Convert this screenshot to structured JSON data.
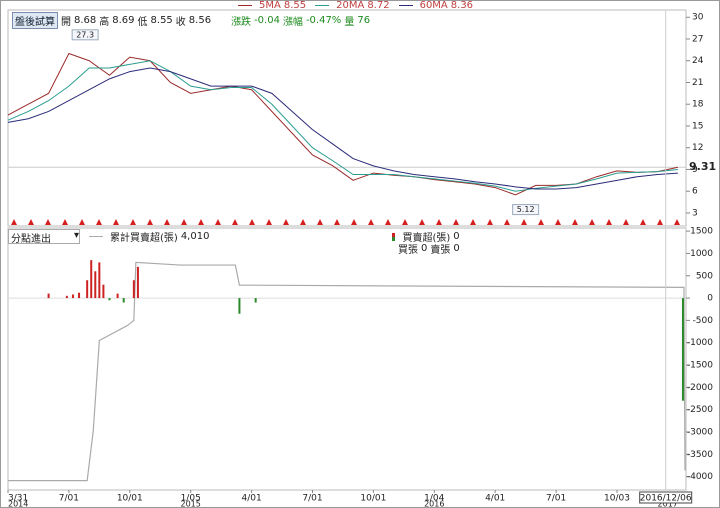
{
  "chart_data": [
    {
      "type": "line",
      "info": {
        "button": "盤後試算",
        "ohlc": [
          {
            "label": "開",
            "value": 8.68
          },
          {
            "label": "高",
            "value": 8.69
          },
          {
            "label": "低",
            "value": 8.55
          },
          {
            "label": "收",
            "value": 8.56
          }
        ],
        "change": [
          {
            "label": "漲跌",
            "value": -0.04
          },
          {
            "label": "漲幅",
            "value": -0.47,
            "value_label": "-0.47%"
          },
          {
            "label": "量",
            "value": 76
          }
        ]
      },
      "x": [
        3,
        4,
        5,
        6,
        7,
        8,
        9,
        10,
        11,
        12,
        13,
        14,
        15,
        16,
        17,
        18,
        19,
        20,
        21,
        22,
        23,
        24,
        25,
        26,
        27,
        28,
        29,
        30,
        31,
        32,
        33,
        34,
        35,
        36
      ],
      "series": [
        {
          "name": "5MA",
          "last": 8.55,
          "color": "#9b2a2a",
          "values": [
            16.5,
            18,
            19.5,
            25,
            24,
            22,
            24.5,
            24,
            21,
            19.5,
            20,
            20.5,
            20,
            17,
            14,
            11,
            9.5,
            7.5,
            8.5,
            8.2,
            8,
            7.6,
            7.3,
            7,
            6.5,
            5.5,
            6.8,
            6.8,
            7,
            8,
            8.8,
            8.6,
            8.7,
            9.3
          ]
        },
        {
          "name": "20MA",
          "last": 8.72,
          "color": "#2a9d8f",
          "values": [
            15.8,
            17,
            18.5,
            20.5,
            23,
            23,
            23.5,
            24,
            22.5,
            20.5,
            20,
            20.3,
            20.3,
            18,
            15,
            12,
            10.2,
            8.3,
            8.3,
            8.3,
            8,
            7.7,
            7.4,
            7.1,
            6.7,
            6,
            6.4,
            6.7,
            7,
            7.7,
            8.5,
            8.6,
            8.7,
            9
          ]
        },
        {
          "name": "60MA",
          "last": 8.36,
          "color": "#2b2b7a",
          "values": [
            15.5,
            16,
            17,
            18.5,
            20,
            21.5,
            22.5,
            23,
            22.5,
            21.5,
            20.5,
            20.5,
            20.5,
            19.5,
            17,
            14.5,
            12.5,
            10.5,
            9.5,
            8.8,
            8.3,
            8,
            7.7,
            7.3,
            7,
            6.6,
            6.3,
            6.3,
            6.5,
            7,
            7.5,
            8,
            8.3,
            8.5
          ]
        }
      ],
      "last_price": 9.31,
      "annotations": [
        {
          "x": 6.8,
          "value": 27.3
        },
        {
          "x": 28.5,
          "value": 5.12
        }
      ],
      "xlim": [
        3,
        36.4
      ],
      "ylim": [
        1.2,
        31
      ],
      "yticks": [
        3,
        6,
        9,
        12,
        15,
        18,
        21,
        24,
        27,
        30
      ]
    },
    {
      "type": "bar",
      "selector": "分點進出",
      "counts": [
        {
          "label": "買張",
          "value": 0
        },
        {
          "label": "賣張",
          "value": 0
        }
      ],
      "series": [
        {
          "name": "累計買賣超(張)",
          "type": "line",
          "color": "#aaaaaa",
          "legend_value": {
            "value": 4010,
            "label": "4,010"
          },
          "x": [
            3,
            6.9,
            7.2,
            7.5,
            8.9,
            9.2,
            9.3,
            11.5,
            14.2,
            14.4,
            36.3,
            36.35
          ],
          "values": [
            -4090,
            -4090,
            -2970,
            -950,
            -610,
            -500,
            800,
            740,
            740,
            290,
            240,
            -3860
          ]
        },
        {
          "name": "買賣超(張)",
          "type": "bar",
          "pos_color": "#cc2222",
          "neg_color": "#2a8a2a",
          "legend_value": {
            "value": 0
          },
          "x": [
            5,
            5.9,
            6.2,
            6.5,
            6.9,
            7.1,
            7.3,
            7.5,
            7.7,
            8,
            8.4,
            8.7,
            9.2,
            9.4,
            14.4,
            15.2,
            36.25
          ],
          "values": [
            100,
            50,
            80,
            120,
            400,
            850,
            600,
            800,
            300,
            -50,
            100,
            -100,
            400,
            700,
            -350,
            -100,
            -2300
          ]
        }
      ],
      "xlim": [
        3,
        36.4
      ],
      "ylim": [
        -4300,
        1570
      ],
      "yticks": [
        1500,
        1000,
        500,
        0,
        -500,
        -1000,
        -1500,
        -2000,
        -2500,
        -3000,
        -3500,
        -4000
      ],
      "xticks": [
        {
          "value": 3,
          "label": "3/31"
        },
        {
          "value": 6,
          "label": "7/01"
        },
        {
          "value": 9,
          "label": "10/01"
        },
        {
          "value": 12,
          "label": "1/05"
        },
        {
          "value": 15,
          "label": "4/01"
        },
        {
          "value": 18,
          "label": "7/01"
        },
        {
          "value": 21,
          "label": "10/01"
        },
        {
          "value": 24,
          "label": "1/04"
        },
        {
          "value": 27,
          "label": "4/01"
        },
        {
          "value": 30,
          "label": "7/01"
        },
        {
          "value": 33,
          "label": "10/03"
        }
      ],
      "year_ticks": [
        {
          "value": 3,
          "label": "2014"
        },
        {
          "value": 12,
          "label": "2015"
        },
        {
          "value": 24,
          "label": "2016"
        },
        {
          "value": 36,
          "label": "2017"
        }
      ],
      "cursor": {
        "x": 35.4,
        "label": "2016/12/06"
      }
    }
  ]
}
